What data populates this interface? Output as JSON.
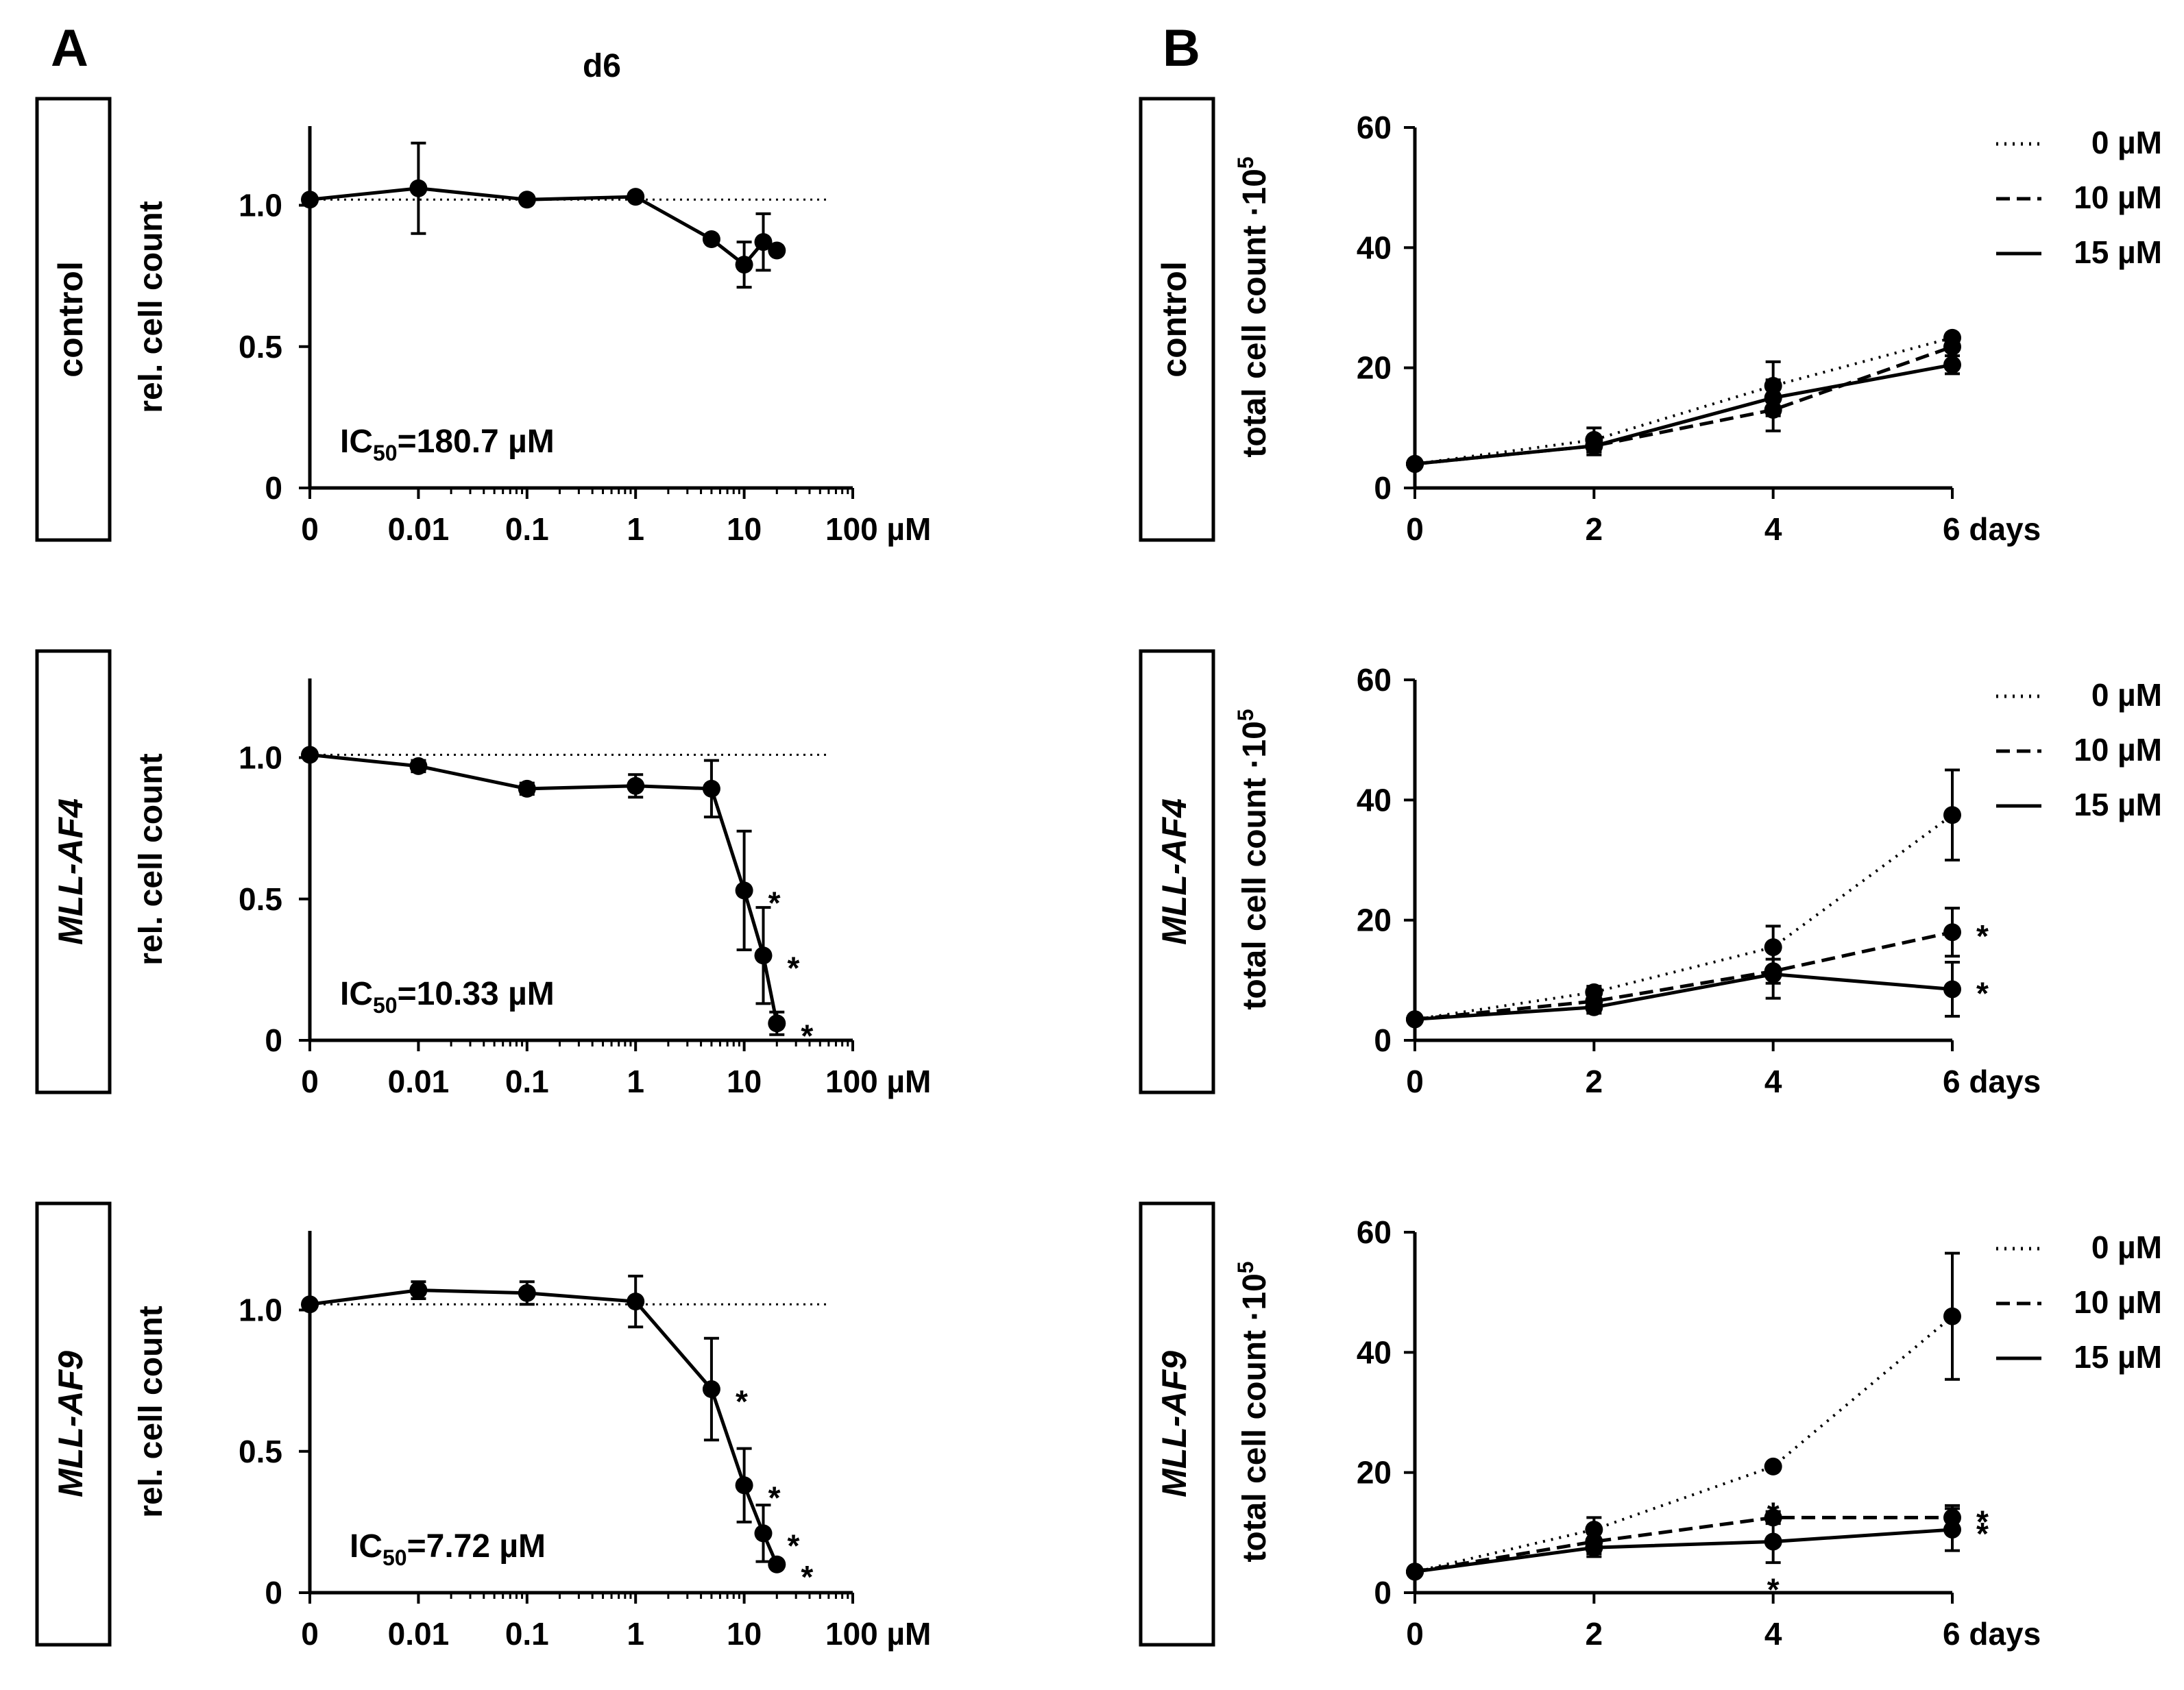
{
  "figure": {
    "panel_a": "A",
    "panel_b": "B",
    "column_title_a": "d6"
  },
  "rows": [
    {
      "label": "control",
      "italic": false,
      "ic50_prefix": "IC",
      "ic50_sub": "50",
      "ic50_value": "=180.7 µM"
    },
    {
      "label": "MLL-AF4",
      "italic": true,
      "ic50_prefix": "IC",
      "ic50_sub": "50",
      "ic50_value": "=10.33 µM"
    },
    {
      "label": "MLL-AF9",
      "italic": true,
      "ic50_prefix": "IC",
      "ic50_sub": "50",
      "ic50_value": "=7.72  µM"
    }
  ],
  "styles": {
    "ink": "#000000",
    "background": "#ffffff"
  },
  "chart_data": [
    {
      "id": "A-control",
      "type": "line",
      "panel": "A",
      "ylabel": "rel. cell count",
      "x_scale": "log",
      "x_ticks": [
        "0",
        "0.01",
        "0.1",
        "1",
        "10",
        "100 µM"
      ],
      "y_ticks": [
        "0",
        "0.5",
        "1.0"
      ],
      "ylim": [
        0,
        1.28
      ],
      "reference_line": 1.02,
      "x": [
        0,
        0.01,
        0.1,
        1,
        5,
        10,
        15,
        20
      ],
      "y": [
        1.02,
        1.06,
        1.02,
        1.03,
        0.88,
        0.79,
        0.87,
        0.84
      ],
      "err": [
        0,
        0.16,
        0,
        0,
        0,
        0.08,
        0.1,
        0
      ],
      "stars": [
        "",
        "",
        "",
        "",
        "",
        "",
        "",
        ""
      ]
    },
    {
      "id": "A-MLL-AF4",
      "type": "line",
      "panel": "A",
      "ylabel": "rel. cell count",
      "x_scale": "log",
      "x_ticks": [
        "0",
        "0.01",
        "0.1",
        "1",
        "10",
        "100 µM"
      ],
      "y_ticks": [
        "0",
        "0.5",
        "1.0"
      ],
      "ylim": [
        0,
        1.28
      ],
      "reference_line": 1.01,
      "x": [
        0,
        0.01,
        0.1,
        1,
        5,
        10,
        15,
        20
      ],
      "y": [
        1.01,
        0.97,
        0.89,
        0.9,
        0.89,
        0.53,
        0.3,
        0.06
      ],
      "err": [
        0,
        0.02,
        0.02,
        0.04,
        0.1,
        0.21,
        0.17,
        0.04
      ],
      "stars": [
        "",
        "",
        "",
        "",
        "",
        "*",
        "*",
        "*"
      ]
    },
    {
      "id": "A-MLL-AF9",
      "type": "line",
      "panel": "A",
      "ylabel": "rel. cell count",
      "x_scale": "log",
      "x_ticks": [
        "0",
        "0.01",
        "0.1",
        "1",
        "10",
        "100 µM"
      ],
      "y_ticks": [
        "0",
        "0.5",
        "1.0"
      ],
      "ylim": [
        0,
        1.28
      ],
      "reference_line": 1.02,
      "x": [
        0,
        0.01,
        0.1,
        1,
        5,
        10,
        15,
        20
      ],
      "y": [
        1.02,
        1.07,
        1.06,
        1.03,
        0.72,
        0.38,
        0.21,
        0.1
      ],
      "err": [
        0,
        0.03,
        0.04,
        0.09,
        0.18,
        0.13,
        0.1,
        0
      ],
      "stars": [
        "",
        "",
        "",
        "",
        "*",
        "*",
        "*",
        "*"
      ]
    },
    {
      "id": "B-control",
      "type": "line",
      "panel": "B",
      "ylabel": "total cell count ·10",
      "ylabel_sup": "5",
      "x_ticks": [
        "0",
        "2",
        "4",
        "6 days"
      ],
      "x": [
        0,
        2,
        4,
        6
      ],
      "y_ticks": [
        "0",
        "20",
        "40",
        "60"
      ],
      "ylim": [
        0,
        60
      ],
      "legend": [
        "0 µM",
        "10 µM",
        "15 µM"
      ],
      "series": [
        {
          "name": "0 µM",
          "style": "dotted",
          "values": [
            4,
            8,
            17,
            25
          ],
          "err": [
            0,
            2,
            4,
            0
          ],
          "stars": [
            "",
            "",
            "",
            ""
          ]
        },
        {
          "name": "10 µM",
          "style": "dashed",
          "values": [
            4,
            7,
            13,
            23.5
          ],
          "err": [
            0,
            1.5,
            3.5,
            0
          ],
          "stars": [
            "",
            "",
            "",
            ""
          ]
        },
        {
          "name": "15 µM",
          "style": "solid",
          "values": [
            4,
            7,
            15,
            20.5
          ],
          "err": [
            0,
            1,
            3,
            1.5
          ],
          "stars": [
            "",
            "",
            "",
            ""
          ]
        }
      ]
    },
    {
      "id": "B-MLL-AF4",
      "type": "line",
      "panel": "B",
      "ylabel": "total cell count ·10",
      "ylabel_sup": "5",
      "x_ticks": [
        "0",
        "2",
        "4",
        "6 days"
      ],
      "x": [
        0,
        2,
        4,
        6
      ],
      "y_ticks": [
        "0",
        "20",
        "40",
        "60"
      ],
      "ylim": [
        0,
        60
      ],
      "legend": [
        "0 µM",
        "10 µM",
        "15 µM"
      ],
      "series": [
        {
          "name": "0 µM",
          "style": "dotted",
          "values": [
            3.5,
            8,
            15.5,
            37.5
          ],
          "err": [
            0,
            1,
            3.5,
            7.5
          ],
          "stars": [
            "",
            "",
            "",
            ""
          ]
        },
        {
          "name": "10 µM",
          "style": "dashed",
          "values": [
            3.5,
            6.5,
            11.5,
            18
          ],
          "err": [
            0,
            1,
            2,
            4
          ],
          "stars": [
            "",
            "",
            "",
            "*"
          ]
        },
        {
          "name": "15 µM",
          "style": "solid",
          "values": [
            3.5,
            5.5,
            11,
            8.5
          ],
          "err": [
            0,
            1,
            4,
            4.5
          ],
          "stars": [
            "",
            "",
            "",
            "*"
          ]
        }
      ]
    },
    {
      "id": "B-MLL-AF9",
      "type": "line",
      "panel": "B",
      "ylabel": "total cell count ·10",
      "ylabel_sup": "5",
      "x_ticks": [
        "0",
        "2",
        "4",
        "6 days"
      ],
      "x": [
        0,
        2,
        4,
        6
      ],
      "y_ticks": [
        "0",
        "20",
        "40",
        "60"
      ],
      "ylim": [
        0,
        60
      ],
      "legend": [
        "0 µM",
        "10 µM",
        "15 µM"
      ],
      "series": [
        {
          "name": "0 µM",
          "style": "dotted",
          "values": [
            3.5,
            10.5,
            21,
            46
          ],
          "err": [
            0,
            2,
            0,
            10.5
          ],
          "stars": [
            "",
            "",
            "",
            ""
          ]
        },
        {
          "name": "10 µM",
          "style": "dashed",
          "values": [
            3.5,
            8.5,
            12.5,
            12.5
          ],
          "err": [
            0,
            2,
            1,
            2
          ],
          "stars": [
            "",
            "",
            "*",
            "*"
          ]
        },
        {
          "name": "15 µM",
          "style": "solid",
          "values": [
            3.5,
            7.5,
            8.5,
            10.5
          ],
          "err": [
            0,
            1.5,
            3.5,
            3.5
          ],
          "stars": [
            "",
            "",
            "*",
            "*"
          ]
        }
      ]
    }
  ]
}
